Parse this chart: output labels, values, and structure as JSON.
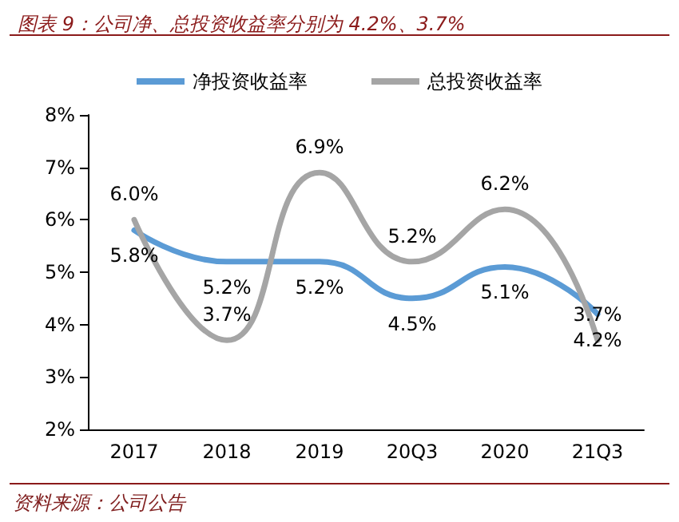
{
  "chart_data": {
    "type": "line",
    "title": "图表 9：公司净、总投资收益率分别为 4.2%、3.7%",
    "annotations": [
      "资料来源：公司公告"
    ],
    "categories": [
      "2017",
      "2018",
      "2019",
      "20Q3",
      "2020",
      "21Q3"
    ],
    "series": [
      {
        "name": "净投资收益率",
        "color": "#5b9bd5",
        "values": [
          5.8,
          5.2,
          5.2,
          4.5,
          5.1,
          4.2
        ],
        "value_labels": [
          "5.8%",
          "5.2%",
          "5.2%",
          "4.5%",
          "5.1%",
          "4.2%"
        ]
      },
      {
        "name": "总投资收益率",
        "color": "#a5a5a5",
        "values": [
          6.0,
          3.7,
          6.9,
          5.2,
          6.2,
          3.7
        ],
        "value_labels": [
          "6.0%",
          "3.7%",
          "6.9%",
          "5.2%",
          "6.2%",
          "3.7%"
        ]
      }
    ],
    "ylim": [
      2,
      8
    ],
    "yticks": [
      {
        "value": 2,
        "label": "2%"
      },
      {
        "value": 3,
        "label": "3%"
      },
      {
        "value": 4,
        "label": "4%"
      },
      {
        "value": 5,
        "label": "5%"
      },
      {
        "value": 6,
        "label": "6%"
      },
      {
        "value": 7,
        "label": "7%"
      },
      {
        "value": 8,
        "label": "8%"
      }
    ],
    "grid": false,
    "legend": "top",
    "marker": "none",
    "line_style": "solid"
  }
}
